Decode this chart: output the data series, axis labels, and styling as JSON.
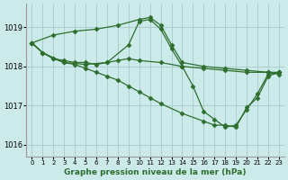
{
  "background_color": "#cceaea",
  "grid_color": "#aacfcf",
  "line_color": "#2d6e2d",
  "marker": "D",
  "marker_size": 2.5,
  "title": "Graphe pression niveau de la mer (hPa)",
  "xlim": [
    -0.5,
    23.5
  ],
  "ylim": [
    1015.7,
    1019.6
  ],
  "yticks": [
    1016,
    1017,
    1018,
    1019
  ],
  "xticks": [
    0,
    1,
    2,
    3,
    4,
    5,
    6,
    7,
    8,
    9,
    10,
    11,
    12,
    13,
    14,
    15,
    16,
    17,
    18,
    19,
    20,
    21,
    22,
    23
  ],
  "lines": [
    {
      "x": [
        0,
        2,
        4,
        6,
        8,
        10,
        11,
        12,
        13,
        14,
        16,
        18,
        20,
        22,
        23
      ],
      "y": [
        1018.6,
        1018.8,
        1018.9,
        1018.95,
        1019.05,
        1019.2,
        1019.25,
        1019.05,
        1018.55,
        1018.1,
        1018.0,
        1017.95,
        1017.9,
        1017.85,
        1017.8
      ]
    },
    {
      "x": [
        0,
        1,
        2,
        3,
        4,
        5,
        6,
        7,
        8,
        9,
        10,
        12,
        14,
        16,
        18,
        20,
        22,
        23
      ],
      "y": [
        1018.6,
        1018.35,
        1018.2,
        1018.15,
        1018.1,
        1018.1,
        1018.05,
        1018.1,
        1018.15,
        1018.2,
        1018.15,
        1018.1,
        1018.0,
        1017.95,
        1017.9,
        1017.85,
        1017.85,
        1017.85
      ]
    },
    {
      "x": [
        0,
        1,
        2,
        3,
        4,
        5,
        6,
        7,
        8,
        9,
        10,
        11,
        12,
        14,
        16,
        17,
        18,
        19,
        20,
        21,
        22,
        23
      ],
      "y": [
        1018.6,
        1018.35,
        1018.2,
        1018.1,
        1018.05,
        1017.95,
        1017.85,
        1017.75,
        1017.65,
        1017.5,
        1017.35,
        1017.2,
        1017.05,
        1016.8,
        1016.6,
        1016.5,
        1016.5,
        1016.45,
        1016.95,
        1017.2,
        1017.75,
        1017.85
      ]
    },
    {
      "x": [
        0,
        1,
        3,
        5,
        7,
        9,
        10,
        11,
        12,
        13,
        14,
        15,
        16,
        17,
        18,
        19,
        20,
        21,
        22,
        23
      ],
      "y": [
        1018.6,
        1018.35,
        1018.1,
        1018.05,
        1018.1,
        1018.55,
        1019.15,
        1019.2,
        1018.95,
        1018.45,
        1018.0,
        1017.5,
        1016.85,
        1016.65,
        1016.45,
        1016.5,
        1016.9,
        1017.3,
        1017.8,
        1017.85
      ]
    }
  ]
}
